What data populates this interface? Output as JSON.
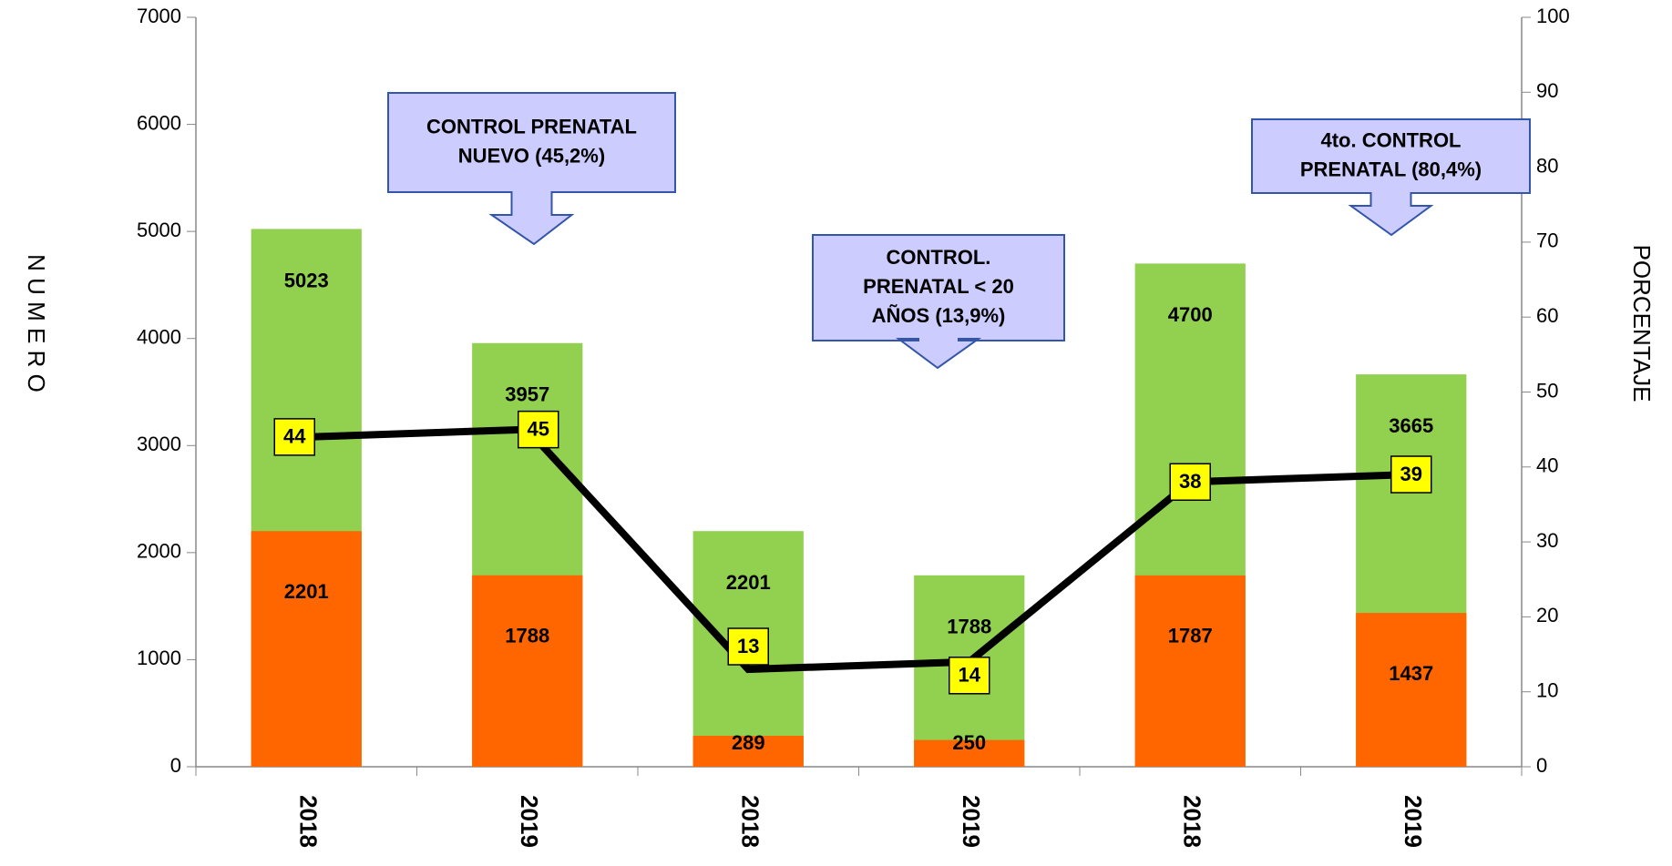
{
  "chart_data": {
    "type": "bar",
    "categories": [
      "2018",
      "2019",
      "2018",
      "2019",
      "2018",
      "2019"
    ],
    "series": [
      {
        "color": "#92d050",
        "values": [
          5023,
          3957,
          2201,
          1788,
          4700,
          3665
        ]
      },
      {
        "color": "#ff6600",
        "values": [
          2201,
          1788,
          289,
          250,
          1787,
          1437
        ]
      },
      {
        "type": "line",
        "axis": "y2",
        "color": "#000000",
        "values": [
          44,
          45,
          13,
          14,
          38,
          39
        ]
      }
    ],
    "ylabel": "N U M E R O",
    "y2label": "PORCENTAJE",
    "ylim": [
      0,
      7000
    ],
    "yticks": [
      0,
      1000,
      2000,
      3000,
      4000,
      5000,
      6000,
      7000
    ],
    "y2lim": [
      0,
      100
    ],
    "y2ticks": [
      0,
      10,
      20,
      30,
      40,
      50,
      60,
      70,
      80,
      90,
      100
    ],
    "annotations": [
      {
        "lines": [
          "CONTROL PRENATAL",
          "NUEVO (45,2%)"
        ]
      },
      {
        "lines": [
          "CONTROL.",
          "PRENATAL < 20",
          "AÑOS (13,9%)"
        ]
      },
      {
        "lines": [
          "4to. CONTROL",
          "PRENATAL (80,4%)"
        ]
      }
    ]
  }
}
